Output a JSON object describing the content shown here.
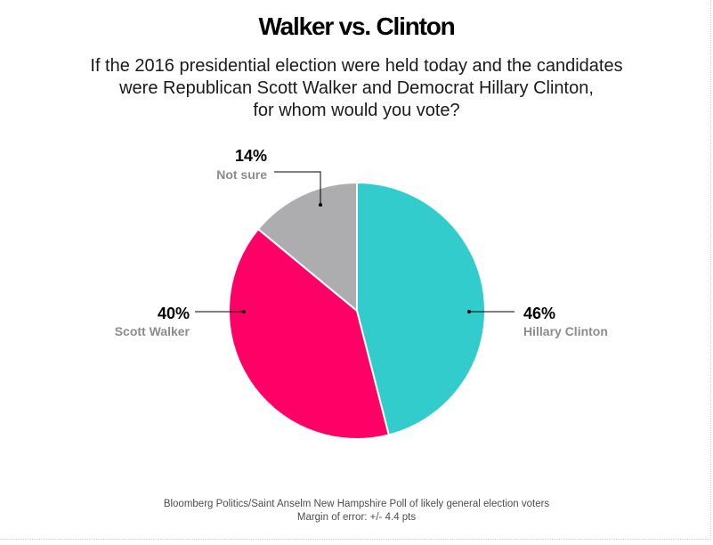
{
  "title": "Walker vs. Clinton",
  "subtitle_lines": [
    "If the 2016 presidential election were held today and the candidates",
    "were Republican Scott Walker and Democrat Hillary Clinton,",
    "for whom would you vote?"
  ],
  "source_lines": [
    "Bloomberg Politics/Saint Anselm New Hampshire Poll of likely general election voters",
    "Margin of error: +/- 4.4 pts"
  ],
  "chart_data": {
    "type": "pie",
    "title": "Walker vs. Clinton",
    "start": "12 o'clock",
    "direction": "clockwise",
    "slices": [
      {
        "label": "Hillary Clinton",
        "value": 46,
        "value_label": "46%",
        "color": "#33cccc"
      },
      {
        "label": "Scott Walker",
        "value": 40,
        "value_label": "40%",
        "color": "#ff0066"
      },
      {
        "label": "Not sure",
        "value": 14,
        "value_label": "14%",
        "color": "#adadb0"
      }
    ]
  }
}
